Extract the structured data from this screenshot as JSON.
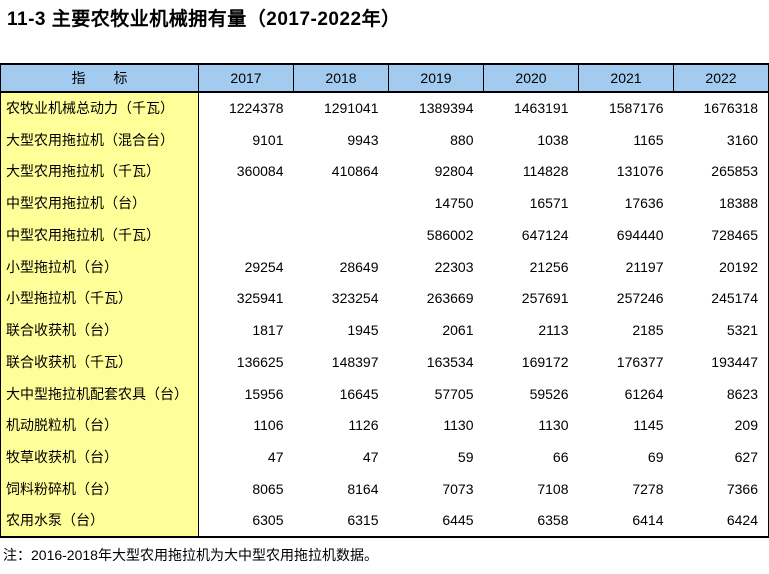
{
  "title": "11-3  主要农牧业机械拥有量（2017-2022年）",
  "table": {
    "indicator_header": "指　　标",
    "years": [
      "2017",
      "2018",
      "2019",
      "2020",
      "2021",
      "2022"
    ],
    "rows": [
      {
        "label": "农牧业机械总动力（千瓦）",
        "values": [
          "1224378",
          "1291041",
          "1389394",
          "1463191",
          "1587176",
          "1676318"
        ]
      },
      {
        "label": "大型农用拖拉机（混合台）",
        "values": [
          "9101",
          "9943",
          "880",
          "1038",
          "1165",
          "3160"
        ]
      },
      {
        "label": "大型农用拖拉机（千瓦）",
        "values": [
          "360084",
          "410864",
          "92804",
          "114828",
          "131076",
          "265853"
        ]
      },
      {
        "label": "中型农用拖拉机（台）",
        "values": [
          "",
          "",
          "14750",
          "16571",
          "17636",
          "18388"
        ]
      },
      {
        "label": "中型农用拖拉机（千瓦）",
        "values": [
          "",
          "",
          "586002",
          "647124",
          "694440",
          "728465"
        ]
      },
      {
        "label": "小型拖拉机（台）",
        "values": [
          "29254",
          "28649",
          "22303",
          "21256",
          "21197",
          "20192"
        ]
      },
      {
        "label": "小型拖拉机（千瓦）",
        "values": [
          "325941",
          "323254",
          "263669",
          "257691",
          "257246",
          "245174"
        ]
      },
      {
        "label": "联合收获机（台）",
        "values": [
          "1817",
          "1945",
          "2061",
          "2113",
          "2185",
          "5321"
        ]
      },
      {
        "label": "联合收获机（千瓦）",
        "values": [
          "136625",
          "148397",
          "163534",
          "169172",
          "176377",
          "193447"
        ]
      },
      {
        "label": "大中型拖拉机配套农具（台）",
        "values": [
          "15956",
          "16645",
          "57705",
          "59526",
          "61264",
          "8623"
        ]
      },
      {
        "label": "机动脱粒机（台）",
        "values": [
          "1106",
          "1126",
          "1130",
          "1130",
          "1145",
          "209"
        ]
      },
      {
        "label": "牧草收获机（台）",
        "values": [
          "47",
          "47",
          "59",
          "66",
          "69",
          "627"
        ]
      },
      {
        "label": "饲料粉碎机（台）",
        "values": [
          "8065",
          "8164",
          "7073",
          "7108",
          "7278",
          "7366"
        ]
      },
      {
        "label": "农用水泵（台）",
        "values": [
          "6305",
          "6315",
          "6445",
          "6358",
          "6414",
          "6424"
        ]
      }
    ]
  },
  "note": "注：2016-2018年大型农用拖拉机为大中型农用拖拉机数据。",
  "colors": {
    "header_bg": "#A2CBEF",
    "label_bg": "#FFFF99",
    "border": "#000000"
  }
}
